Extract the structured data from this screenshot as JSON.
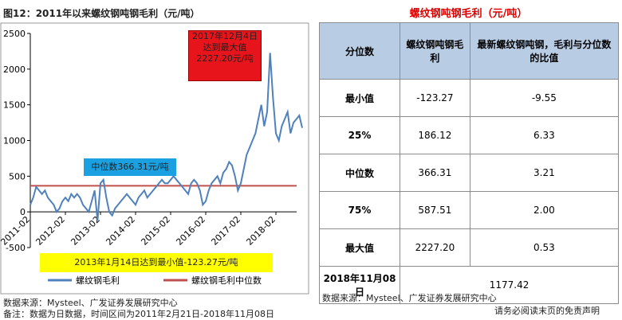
{
  "chart_data": {
    "type": "line",
    "title": "图12：2011年以来螺纹钢吨钢毛利（元/吨）",
    "categories": [
      "2011-02",
      null,
      null,
      null,
      null,
      null,
      null,
      null,
      null,
      null,
      null,
      null,
      "2012-02",
      null,
      null,
      null,
      null,
      null,
      null,
      null,
      null,
      null,
      null,
      null,
      "2013-02",
      null,
      null,
      null,
      null,
      null,
      null,
      null,
      null,
      null,
      null,
      null,
      "2014-02",
      null,
      null,
      null,
      null,
      null,
      null,
      null,
      null,
      null,
      null,
      null,
      "2015-02",
      null,
      null,
      null,
      null,
      null,
      null,
      null,
      null,
      null,
      null,
      null,
      "2016-02",
      null,
      null,
      null,
      null,
      null,
      null,
      null,
      null,
      null,
      null,
      null,
      "2017-02",
      null,
      null,
      null,
      null,
      null,
      null,
      null,
      null,
      null,
      null,
      null,
      "2018-02",
      null,
      null,
      null,
      null,
      null,
      null,
      null,
      null,
      null
    ],
    "series": [
      {
        "name": "螺纹钢毛利",
        "color": "#4f81bd",
        "values": [
          100,
          200,
          350,
          300,
          250,
          300,
          200,
          150,
          100,
          0,
          50,
          150,
          200,
          150,
          250,
          200,
          250,
          200,
          100,
          50,
          0,
          150,
          300,
          -123.27,
          400,
          450,
          200,
          0,
          -50,
          50,
          100,
          150,
          200,
          250,
          200,
          150,
          100,
          200,
          250,
          300,
          200,
          250,
          300,
          350,
          400,
          450,
          400,
          400,
          450,
          500,
          450,
          400,
          350,
          300,
          250,
          400,
          450,
          400,
          300,
          100,
          150,
          300,
          400,
          450,
          500,
          400,
          550,
          600,
          700,
          650,
          500,
          300,
          400,
          600,
          800,
          900,
          1000,
          1100,
          1300,
          1500,
          1200,
          1400,
          2227.2,
          1600,
          1100,
          1000,
          1200,
          1300,
          1400,
          1100,
          1250,
          1300,
          1350,
          1177.42
        ]
      }
    ],
    "hline": {
      "name": "螺纹钢毛利中位数",
      "color": "#c0504d",
      "value": 366.31
    },
    "ylim": [
      -500,
      2500
    ],
    "yticks": [
      -500,
      0,
      500,
      1000,
      1500,
      2000,
      2500
    ],
    "annotations": [
      "2017年12月4日达到最大值2227.20元/吨",
      "中位数366.31元/吨",
      "2013年1月14日达到最小值-123.27元/吨"
    ],
    "source": "数据来源：Mysteel、广发证券发展研究中心",
    "remark": "备注：数据为日数据，时间区间为2011年2月21日-2018年11月08日"
  },
  "table": {
    "title": "螺纹钢吨钢毛利（元/吨）",
    "header": [
      "分位数",
      "螺纹钢吨钢毛利",
      "最新螺纹钢吨钢，毛利与分位数的比值"
    ],
    "rows": [
      [
        "最小值",
        "-123.27",
        "-9.55"
      ],
      [
        "25%",
        "186.12",
        "6.33"
      ],
      [
        "中位数",
        "366.31",
        "3.21"
      ],
      [
        "75%",
        "587.51",
        "2.00"
      ],
      [
        "最大值",
        "2227.20",
        "0.53"
      ]
    ],
    "last_row": [
      "2018年11月08日",
      "1177.42"
    ],
    "source": "数据来源：Mysteel、广发证券发展研究中心",
    "disclaimer": "请务必阅读末页的免责声明"
  }
}
